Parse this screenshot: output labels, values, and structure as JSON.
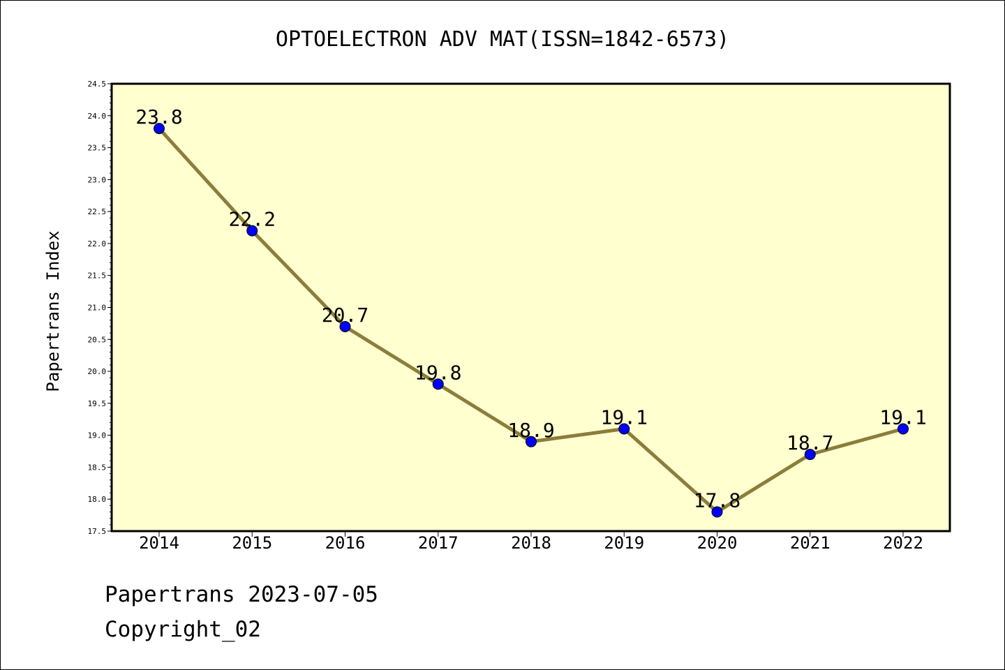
{
  "chart_data": {
    "type": "line",
    "title": "OPTOELECTRON ADV MAT(ISSN=1842-6573)",
    "ylabel": "Papertrans Index",
    "xlabel": "",
    "categories": [
      "2014",
      "2015",
      "2016",
      "2017",
      "2018",
      "2019",
      "2020",
      "2021",
      "2022"
    ],
    "series": [
      {
        "values": [
          23.8,
          22.2,
          20.7,
          19.8,
          18.9,
          19.1,
          17.8,
          18.7,
          19.1
        ],
        "labels": [
          "23.8",
          "22.2",
          "20.7",
          "19.8",
          "18.9",
          "19.1",
          "17.8",
          "18.7",
          "19.1"
        ]
      }
    ],
    "ylim": [
      17.5,
      24.5
    ],
    "yticks": [
      "17.5",
      "18.0",
      "18.5",
      "19.0",
      "19.5",
      "20.0",
      "20.5",
      "21.0",
      "21.5",
      "22.0",
      "22.5",
      "23.0",
      "23.5",
      "24.0",
      "24.5"
    ],
    "grid": false,
    "colors": {
      "plot_background": "#ffffd0",
      "line": "#8b7d3a",
      "marker": "#0000ff"
    }
  },
  "footer": {
    "line1": "Papertrans 2023-07-05",
    "line2": "Copyright_02"
  }
}
